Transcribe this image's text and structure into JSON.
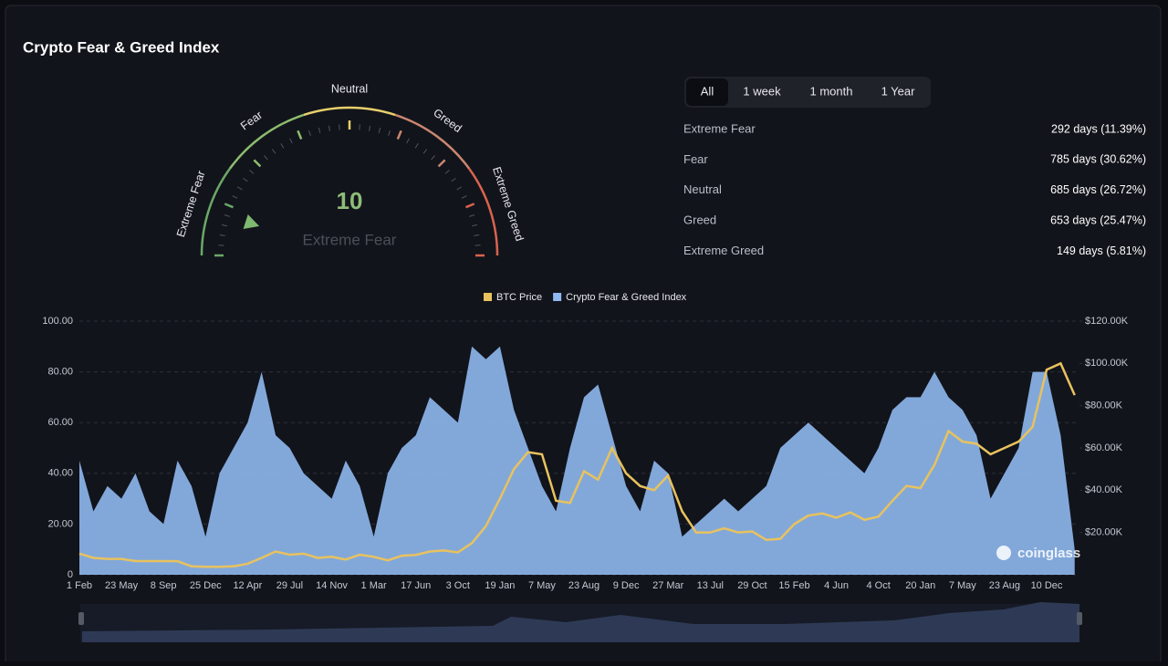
{
  "title": "Crypto Fear & Greed Index",
  "gauge": {
    "value": 10,
    "label": "Extreme Fear",
    "range": [
      0,
      100
    ],
    "zones": [
      "Extreme Fear",
      "Fear",
      "Neutral",
      "Greed",
      "Extreme Greed"
    ]
  },
  "tabs": [
    "All",
    "1 week",
    "1 month",
    "1 Year"
  ],
  "stats": [
    {
      "label": "Extreme Fear",
      "value": "292 days (11.39%)"
    },
    {
      "label": "Fear",
      "value": "785 days (30.62%)"
    },
    {
      "label": "Neutral",
      "value": "685 days (26.72%)"
    },
    {
      "label": "Greed",
      "value": "653 days (25.47%)"
    },
    {
      "label": "Extreme Greed",
      "value": "149 days (5.81%)"
    }
  ],
  "watermark": "coinglass",
  "chart_data": {
    "type": "area",
    "categories": [
      "1 Feb",
      null,
      null,
      "23 May",
      null,
      null,
      "8 Sep",
      null,
      null,
      "25 Dec",
      null,
      null,
      "12 Apr",
      null,
      null,
      "29 Jul",
      null,
      null,
      "14 Nov",
      null,
      null,
      "1 Mar",
      null,
      null,
      "17 Jun",
      null,
      null,
      "3 Oct",
      null,
      null,
      "19 Jan",
      null,
      null,
      "7 May",
      null,
      null,
      "23 Aug",
      null,
      null,
      "9 Dec",
      null,
      null,
      "27 Mar",
      null,
      null,
      "13 Jul",
      null,
      null,
      "29 Oct",
      null,
      null,
      "15 Feb",
      null,
      null,
      "4 Jun",
      null,
      null,
      "4 Oct",
      null,
      null,
      "20 Jan",
      null,
      null,
      "7 May",
      null,
      null,
      "23 Aug",
      null,
      null,
      "10 Dec",
      null,
      null
    ],
    "series": [
      {
        "name": "BTC Price",
        "color": "#e8c25e",
        "type": "line",
        "axis": "y2",
        "values": [
          10000,
          8000,
          7500,
          7500,
          6500,
          6500,
          6500,
          6400,
          4000,
          3800,
          3800,
          4000,
          5200,
          8000,
          11000,
          9500,
          10000,
          8000,
          8500,
          7200,
          9500,
          8500,
          6800,
          9000,
          9400,
          11000,
          11500,
          10600,
          15000,
          23000,
          36000,
          50000,
          58000,
          57000,
          35000,
          34000,
          49000,
          45000,
          60000,
          48000,
          42000,
          40000,
          47000,
          30000,
          20000,
          20000,
          22000,
          20000,
          20500,
          16500,
          17000,
          24000,
          28000,
          29000,
          27000,
          29500,
          26000,
          27500,
          35000,
          42000,
          41000,
          52000,
          68000,
          63000,
          62000,
          57000,
          60000,
          63000,
          70000,
          97000,
          100000,
          85000
        ]
      },
      {
        "name": "Crypto Fear & Greed Index",
        "color": "#8fb8f0",
        "type": "area",
        "values": [
          45,
          25,
          35,
          30,
          40,
          25,
          20,
          45,
          35,
          15,
          40,
          50,
          60,
          80,
          55,
          50,
          40,
          35,
          30,
          45,
          35,
          15,
          40,
          50,
          55,
          70,
          65,
          60,
          90,
          85,
          90,
          65,
          50,
          35,
          25,
          50,
          70,
          75,
          55,
          35,
          25,
          45,
          40,
          15,
          20,
          25,
          30,
          25,
          30,
          35,
          50,
          55,
          60,
          55,
          50,
          45,
          40,
          50,
          65,
          70,
          70,
          80,
          70,
          65,
          55,
          30,
          40,
          50,
          80,
          80,
          55,
          10
        ]
      }
    ],
    "ylim": [
      0,
      100
    ],
    "yticks": [
      0,
      {
        "value": 20,
        "label": "20.00"
      },
      {
        "value": 40,
        "label": "40.00"
      },
      {
        "value": 60,
        "label": "60.00"
      },
      {
        "value": 80,
        "label": "80.00"
      },
      {
        "value": 100,
        "label": "100.00"
      }
    ],
    "y2lim": [
      0,
      120000
    ],
    "y2ticks": [
      {
        "value": 20000,
        "label": "$20.00K"
      },
      {
        "value": 40000,
        "label": "$40.00K"
      },
      {
        "value": 60000,
        "label": "$60.00K"
      },
      {
        "value": 80000,
        "label": "$80.00K"
      },
      {
        "value": 100000,
        "label": "$100.00K"
      },
      {
        "value": 120000,
        "label": "$120.00K"
      }
    ],
    "grid": true
  }
}
